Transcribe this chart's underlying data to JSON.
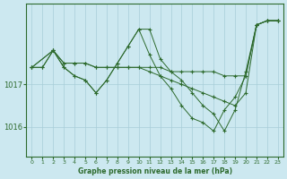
{
  "background_color": "#cce8f0",
  "grid_color": "#a8cdd8",
  "line_color": "#2d6a2d",
  "marker": "+",
  "title": "Graphe pression niveau de la mer (hPa)",
  "xlim": [
    -0.5,
    23.5
  ],
  "ylim": [
    1015.3,
    1018.9
  ],
  "yticks": [
    1016,
    1017
  ],
  "xticks": [
    0,
    1,
    2,
    3,
    4,
    5,
    6,
    7,
    8,
    9,
    10,
    11,
    12,
    13,
    14,
    15,
    16,
    17,
    18,
    19,
    20,
    21,
    22,
    23
  ],
  "series": [
    {
      "x": [
        0,
        1,
        2,
        3,
        4,
        5,
        6,
        7,
        8,
        9,
        10,
        11,
        12,
        13,
        14,
        15,
        16,
        17,
        18,
        19,
        20,
        21,
        22,
        23
      ],
      "y": [
        1017.4,
        1017.4,
        1017.8,
        1017.5,
        1017.5,
        1017.5,
        1017.4,
        1017.4,
        1017.4,
        1017.4,
        1017.4,
        1017.4,
        1017.4,
        1017.3,
        1017.3,
        1017.3,
        1017.3,
        1017.3,
        1017.2,
        1017.2,
        1017.2,
        1018.4,
        1018.5,
        1018.5
      ]
    },
    {
      "x": [
        0,
        1,
        2,
        3,
        4,
        5,
        6,
        7,
        8,
        9,
        10,
        11,
        12,
        13,
        14,
        15,
        16,
        17,
        18,
        19,
        20,
        21,
        22,
        23
      ],
      "y": [
        1017.4,
        1017.4,
        1017.8,
        1017.5,
        1017.5,
        1017.5,
        1017.4,
        1017.4,
        1017.4,
        1017.4,
        1017.4,
        1017.3,
        1017.2,
        1017.1,
        1017.0,
        1016.9,
        1016.8,
        1016.7,
        1016.6,
        1016.5,
        1016.8,
        1018.4,
        1018.5,
        1018.5
      ]
    },
    {
      "x": [
        0,
        2,
        3,
        4,
        5,
        6,
        7,
        8,
        9,
        10,
        11,
        12,
        13,
        14,
        15,
        16,
        17,
        18,
        19,
        20,
        21,
        22,
        23
      ],
      "y": [
        1017.4,
        1017.8,
        1017.4,
        1017.2,
        1017.1,
        1016.8,
        1017.1,
        1017.5,
        1017.9,
        1018.3,
        1018.3,
        1017.6,
        1017.3,
        1017.1,
        1016.8,
        1016.5,
        1016.3,
        1015.9,
        1016.4,
        1017.3,
        1018.4,
        1018.5,
        1018.5
      ]
    },
    {
      "x": [
        0,
        2,
        3,
        4,
        5,
        6,
        7,
        8,
        9,
        10,
        11,
        12,
        13,
        14,
        15,
        16,
        17,
        18,
        19,
        20,
        21,
        22,
        23
      ],
      "y": [
        1017.4,
        1017.8,
        1017.4,
        1017.2,
        1017.1,
        1016.8,
        1017.1,
        1017.5,
        1017.9,
        1018.3,
        1017.7,
        1017.2,
        1016.9,
        1016.5,
        1016.2,
        1016.1,
        1015.9,
        1016.4,
        1016.7,
        1017.2,
        1018.4,
        1018.5,
        1018.5
      ]
    }
  ]
}
